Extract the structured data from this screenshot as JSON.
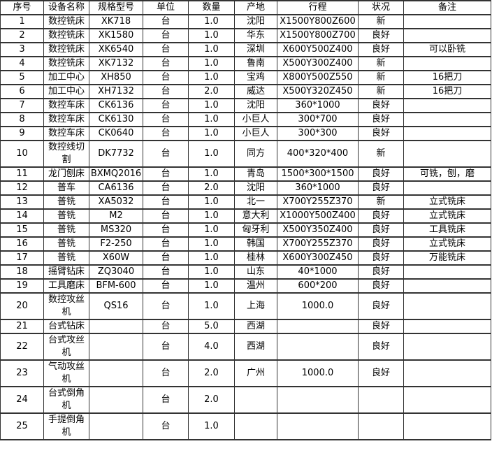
{
  "colors": {
    "background": "#ffffff",
    "border": "#333333",
    "text": "#000000"
  },
  "table": {
    "columns": [
      {
        "key": "index",
        "label": "序号"
      },
      {
        "key": "name",
        "label": "设备名称"
      },
      {
        "key": "model",
        "label": "规格型号"
      },
      {
        "key": "unit",
        "label": "单位"
      },
      {
        "key": "qty",
        "label": "数量"
      },
      {
        "key": "origin",
        "label": "产地"
      },
      {
        "key": "travel",
        "label": "行程"
      },
      {
        "key": "condition",
        "label": "状况"
      },
      {
        "key": "remark",
        "label": "备注"
      }
    ],
    "rows": [
      {
        "index": "1",
        "name": "数控铣床",
        "model": "XK718",
        "unit": "台",
        "qty": "1.0",
        "origin": "沈阳",
        "travel": "X1500Y800Z600",
        "condition": "新",
        "remark": ""
      },
      {
        "index": "2",
        "name": "数控铣床",
        "model": "XK1580",
        "unit": "台",
        "qty": "1.0",
        "origin": "华东",
        "travel": "X1500Y800Z700",
        "condition": "良好",
        "remark": ""
      },
      {
        "index": "3",
        "name": "数控铣床",
        "model": "XK6540",
        "unit": "台",
        "qty": "1.0",
        "origin": "深圳",
        "travel": "X600Y500Z400",
        "condition": "良好",
        "remark": "可以卧铣"
      },
      {
        "index": "4",
        "name": "数控铣床",
        "model": "XK7132",
        "unit": "台",
        "qty": "1.0",
        "origin": "鲁南",
        "travel": "X500Y300Z400",
        "condition": "新",
        "remark": ""
      },
      {
        "index": "5",
        "name": "加工中心",
        "model": "XH850",
        "unit": "台",
        "qty": "1.0",
        "origin": "宝鸡",
        "travel": "X800Y500Z550",
        "condition": "新",
        "remark": "16把刀"
      },
      {
        "index": "6",
        "name": "加工中心",
        "model": "XH7132",
        "unit": "台",
        "qty": "2.0",
        "origin": "威达",
        "travel": "X500Y320Z450",
        "condition": "新",
        "remark": "16把刀"
      },
      {
        "index": "7",
        "name": "数控车床",
        "model": "CK6136",
        "unit": "台",
        "qty": "1.0",
        "origin": "沈阳",
        "travel": "360*1000",
        "condition": "良好",
        "remark": ""
      },
      {
        "index": "8",
        "name": "数控车床",
        "model": "CK6130",
        "unit": "台",
        "qty": "1.0",
        "origin": "小巨人",
        "travel": "300*700",
        "condition": "良好",
        "remark": ""
      },
      {
        "index": "9",
        "name": "数控车床",
        "model": "CK0640",
        "unit": "台",
        "qty": "1.0",
        "origin": "小巨人",
        "travel": "300*300",
        "condition": "良好",
        "remark": ""
      },
      {
        "index": "10",
        "name": "数控线切割",
        "model": "DK7732",
        "unit": "台",
        "qty": "1.0",
        "origin": "同方",
        "travel": "400*320*400",
        "condition": "新",
        "remark": ""
      },
      {
        "index": "11",
        "name": "龙门刨床",
        "model": "BXMQ2016",
        "unit": "台",
        "qty": "1.0",
        "origin": "青岛",
        "travel": "1500*300*1500",
        "condition": "良好",
        "remark": "可铣，刨，磨"
      },
      {
        "index": "12",
        "name": "普车",
        "model": "CA6136",
        "unit": "台",
        "qty": "2.0",
        "origin": "沈阳",
        "travel": "360*1000",
        "condition": "良好",
        "remark": ""
      },
      {
        "index": "13",
        "name": "普铣",
        "model": "XA5032",
        "unit": "台",
        "qty": "1.0",
        "origin": "北一",
        "travel": "X700Y255Z370",
        "condition": "新",
        "remark": "立式铣床"
      },
      {
        "index": "14",
        "name": "普铣",
        "model": "M2",
        "unit": "台",
        "qty": "1.0",
        "origin": "意大利",
        "travel": "X1000Y500Z400",
        "condition": "良好",
        "remark": "立式铣床"
      },
      {
        "index": "15",
        "name": "普铣",
        "model": "MS320",
        "unit": "台",
        "qty": "1.0",
        "origin": "匈牙利",
        "travel": "X500Y350Z400",
        "condition": "良好",
        "remark": "工具铣床"
      },
      {
        "index": "16",
        "name": "普铣",
        "model": "F2-250",
        "unit": "台",
        "qty": "1.0",
        "origin": "韩国",
        "travel": "X700Y255Z370",
        "condition": "良好",
        "remark": "立式铣床"
      },
      {
        "index": "17",
        "name": "普铣",
        "model": "X60W",
        "unit": "台",
        "qty": "1.0",
        "origin": "桂林",
        "travel": "X600Y300Z450",
        "condition": "良好",
        "remark": "万能铣床"
      },
      {
        "index": "18",
        "name": "摇臂钻床",
        "model": "ZQ3040",
        "unit": "台",
        "qty": "1.0",
        "origin": "山东",
        "travel": "40*1000",
        "condition": "良好",
        "remark": ""
      },
      {
        "index": "19",
        "name": "工具磨床",
        "model": "BFM-600",
        "unit": "台",
        "qty": "1.0",
        "origin": "温州",
        "travel": "600*200",
        "condition": "良好",
        "remark": ""
      },
      {
        "index": "20",
        "name": "数控攻丝机",
        "model": "QS16",
        "unit": "台",
        "qty": "1.0",
        "origin": "上海",
        "travel": "1000.0",
        "condition": "良好",
        "remark": ""
      },
      {
        "index": "21",
        "name": "台式钻床",
        "model": "",
        "unit": "台",
        "qty": "5.0",
        "origin": "西湖",
        "travel": "",
        "condition": "良好",
        "remark": ""
      },
      {
        "index": "22",
        "name": "台式攻丝机",
        "model": "",
        "unit": "台",
        "qty": "4.0",
        "origin": "西湖",
        "travel": "",
        "condition": "良好",
        "remark": ""
      },
      {
        "index": "23",
        "name": "气动攻丝机",
        "model": "",
        "unit": "台",
        "qty": "2.0",
        "origin": "广州",
        "travel": "1000.0",
        "condition": "良好",
        "remark": ""
      },
      {
        "index": "24",
        "name": "台式倒角机",
        "model": "",
        "unit": "台",
        "qty": "2.0",
        "origin": "",
        "travel": "",
        "condition": "",
        "remark": ""
      },
      {
        "index": "25",
        "name": "手提倒角机",
        "model": "",
        "unit": "台",
        "qty": "1.0",
        "origin": "",
        "travel": "",
        "condition": "",
        "remark": ""
      }
    ]
  }
}
